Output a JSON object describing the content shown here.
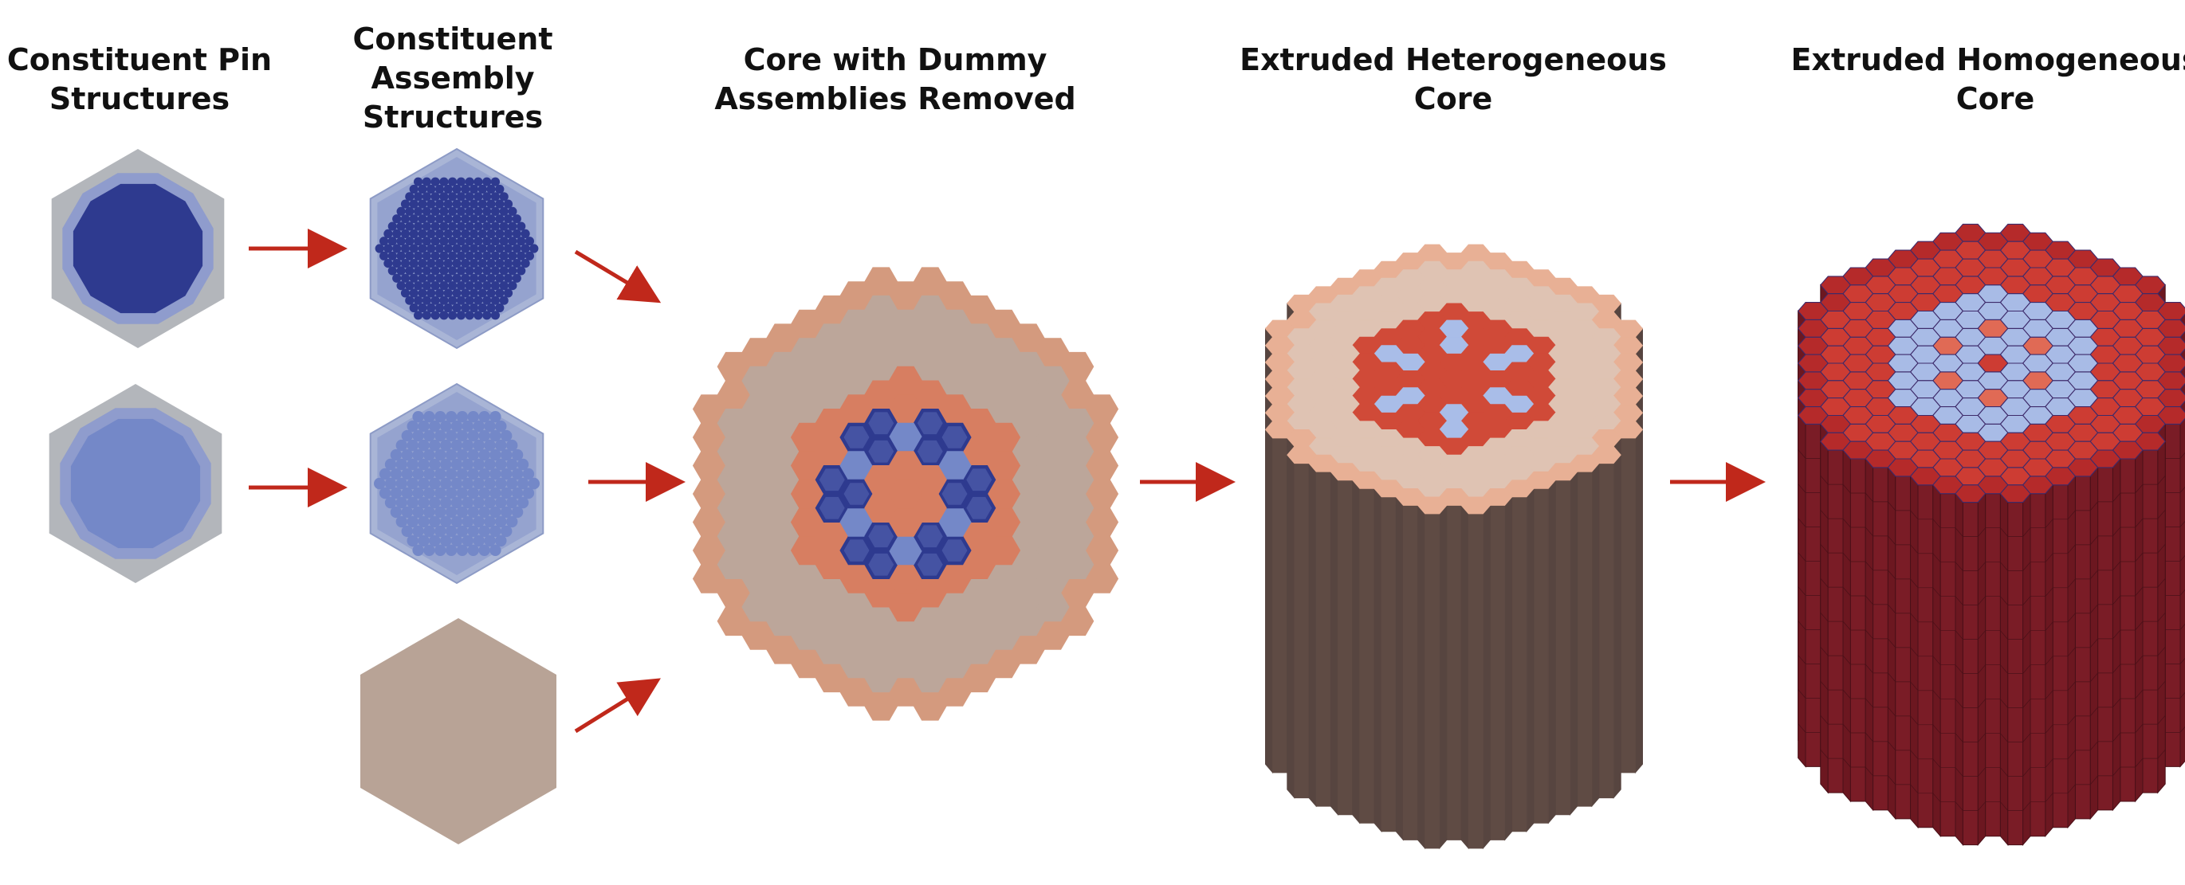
{
  "titles": {
    "pin": [
      "Constituent Pin",
      "Structures"
    ],
    "assembly": [
      "Constituent",
      "Assembly",
      "Structures"
    ],
    "core": [
      "Core with Dummy",
      "Assemblies Removed"
    ],
    "hetero": [
      "Extruded Heterogeneous",
      "Core"
    ],
    "homo": [
      "Extruded Homogeneous",
      "Core"
    ]
  },
  "colors": {
    "pin_cladding_gray": "#b3b6bb",
    "pin_gap": "#8f9ccd",
    "fuel_dark_blue": "#2e3a8f",
    "fuel_light_blue": "#7488c8",
    "assembly_duct": "#a9b5d6",
    "dummy_tan": "#b8a396",
    "core_outer_ring": "#d49a7e",
    "core_reflector": "#bca69a",
    "core_fuel_orange": "#d77e61",
    "hetero_top_outer": "#e8b095",
    "hetero_top_inner": "#dfc3b3",
    "hetero_top_red": "#d04a38",
    "hetero_top_light_blue": "#a9bde8",
    "hetero_side_brown": "#5f4b44",
    "homo_top_red": "#cd3c33",
    "homo_top_light_blue": "#a8bbe6",
    "homo_side_maroon": "#7a1c26",
    "arrow_red": "#c0281b"
  },
  "icons": [
    "arrow-right-icon",
    "arrow-down-right-icon",
    "arrow-up-right-icon"
  ]
}
